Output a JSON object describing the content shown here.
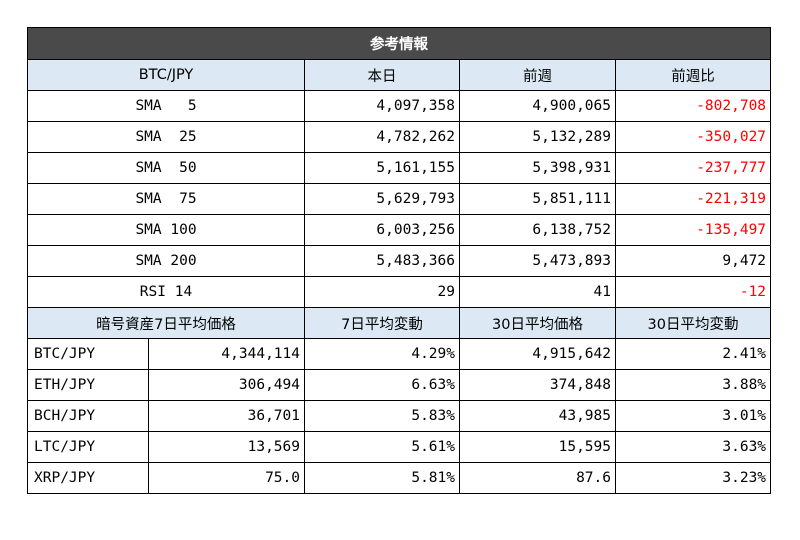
{
  "title": "参考情報",
  "top_headers": [
    "BTC/JPY",
    "本日",
    "前週",
    "前週比"
  ],
  "indicators": [
    {
      "label": "SMA   5",
      "today": "4,097,358",
      "prev": "4,900,065",
      "diff": "-802,708",
      "negative": true
    },
    {
      "label": "SMA  25",
      "today": "4,782,262",
      "prev": "5,132,289",
      "diff": "-350,027",
      "negative": true
    },
    {
      "label": "SMA  50",
      "today": "5,161,155",
      "prev": "5,398,931",
      "diff": "-237,777",
      "negative": true
    },
    {
      "label": "SMA  75",
      "today": "5,629,793",
      "prev": "5,851,111",
      "diff": "-221,319",
      "negative": true
    },
    {
      "label": "SMA 100",
      "today": "6,003,256",
      "prev": "6,138,752",
      "diff": "-135,497",
      "negative": true
    },
    {
      "label": "SMA 200",
      "today": "5,483,366",
      "prev": "5,473,893",
      "diff": "9,472",
      "negative": false
    },
    {
      "label": "RSI 14",
      "today": "29",
      "prev": "41",
      "diff": "-12",
      "negative": true
    }
  ],
  "bottom_headers": [
    "暗号資産7日平均価格",
    "7日平均変動",
    "30日平均価格",
    "30日平均変動"
  ],
  "assets": [
    {
      "pair": "BTC/JPY",
      "avg7": "4,344,114",
      "chg7": "4.29%",
      "avg30": "4,915,642",
      "chg30": "2.41%"
    },
    {
      "pair": "ETH/JPY",
      "avg7": "306,494",
      "chg7": "6.63%",
      "avg30": "374,848",
      "chg30": "3.88%"
    },
    {
      "pair": "BCH/JPY",
      "avg7": "36,701",
      "chg7": "5.83%",
      "avg30": "43,985",
      "chg30": "3.01%"
    },
    {
      "pair": "LTC/JPY",
      "avg7": "13,569",
      "chg7": "5.61%",
      "avg30": "15,595",
      "chg30": "3.63%"
    },
    {
      "pair": "XRP/JPY",
      "avg7": "75.0",
      "chg7": "5.81%",
      "avg30": "87.6",
      "chg30": "3.23%"
    }
  ],
  "colors": {
    "title_bg": "#4a4a4a",
    "header_bg": "#dce8f4",
    "negative": "#ff0000"
  }
}
